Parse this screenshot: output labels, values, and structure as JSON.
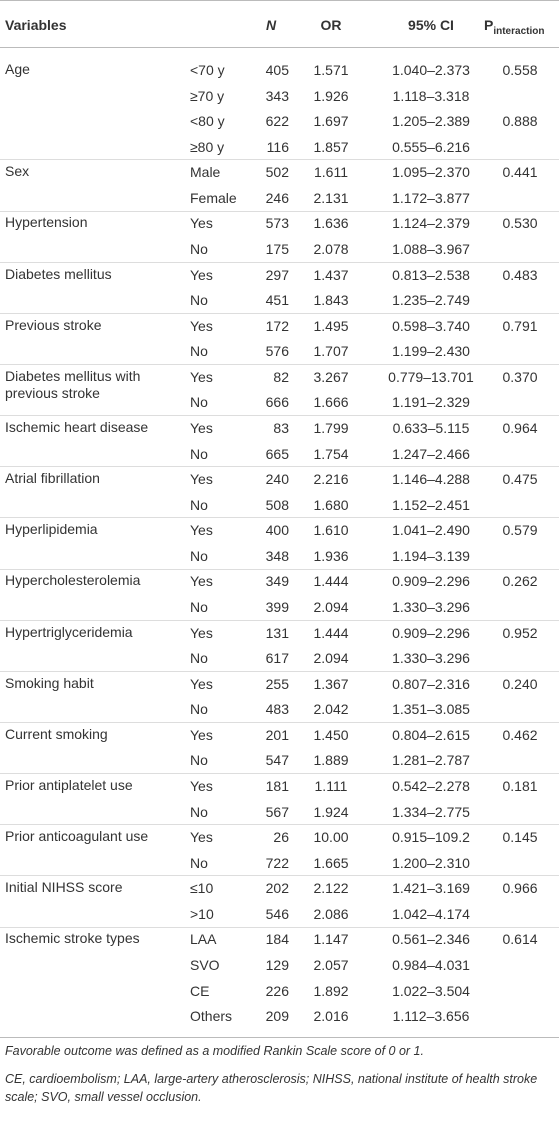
{
  "header": {
    "variables": "Variables",
    "n": "N",
    "or": "OR",
    "ci": "95% CI",
    "p": "P",
    "p_sub": "interaction"
  },
  "groups": [
    {
      "variable": "Age",
      "rows": [
        {
          "sub": "<70 y",
          "n": "405",
          "or": "1.571",
          "ci": "1.040–2.373",
          "p": "0.558"
        },
        {
          "sub": "≥70 y",
          "n": "343",
          "or": "1.926",
          "ci": "1.118–3.318"
        },
        {
          "sub": "<80 y",
          "n": "622",
          "or": "1.697",
          "ci": "1.205–2.389",
          "p": "0.888"
        },
        {
          "sub": "≥80 y",
          "n": "116",
          "or": "1.857",
          "ci": "0.555–6.216"
        }
      ]
    },
    {
      "variable": "Sex",
      "rows": [
        {
          "sub": "Male",
          "n": "502",
          "or": "1.611",
          "ci": "1.095–2.370",
          "p": "0.441"
        },
        {
          "sub": "Female",
          "n": "246",
          "or": "2.131",
          "ci": "1.172–3.877"
        }
      ]
    },
    {
      "variable": "Hypertension",
      "rows": [
        {
          "sub": "Yes",
          "n": "573",
          "or": "1.636",
          "ci": "1.124–2.379",
          "p": "0.530"
        },
        {
          "sub": "No",
          "n": "175",
          "or": "2.078",
          "ci": "1.088–3.967"
        }
      ]
    },
    {
      "variable": "Diabetes mellitus",
      "rows": [
        {
          "sub": "Yes",
          "n": "297",
          "or": "1.437",
          "ci": "0.813–2.538",
          "p": "0.483"
        },
        {
          "sub": "No",
          "n": "451",
          "or": "1.843",
          "ci": "1.235–2.749"
        }
      ]
    },
    {
      "variable": "Previous stroke",
      "rows": [
        {
          "sub": "Yes",
          "n": "172",
          "or": "1.495",
          "ci": "0.598–3.740",
          "p": "0.791"
        },
        {
          "sub": "No",
          "n": "576",
          "or": "1.707",
          "ci": "1.199–2.430"
        }
      ]
    },
    {
      "variable": "Diabetes mellitus with previous stroke",
      "rows": [
        {
          "sub": "Yes",
          "n": "82",
          "or": "3.267",
          "ci": "0.779–13.701",
          "p": "0.370"
        },
        {
          "sub": "No",
          "n": "666",
          "or": "1.666",
          "ci": "1.191–2.329"
        }
      ]
    },
    {
      "variable": "Ischemic heart disease",
      "rows": [
        {
          "sub": "Yes",
          "n": "83",
          "or": "1.799",
          "ci": "0.633–5.115",
          "p": "0.964"
        },
        {
          "sub": "No",
          "n": "665",
          "or": "1.754",
          "ci": "1.247–2.466"
        }
      ]
    },
    {
      "variable": "Atrial fibrillation",
      "rows": [
        {
          "sub": "Yes",
          "n": "240",
          "or": "2.216",
          "ci": "1.146–4.288",
          "p": "0.475"
        },
        {
          "sub": "No",
          "n": "508",
          "or": "1.680",
          "ci": "1.152–2.451"
        }
      ]
    },
    {
      "variable": "Hyperlipidemia",
      "rows": [
        {
          "sub": "Yes",
          "n": "400",
          "or": "1.610",
          "ci": "1.041–2.490",
          "p": "0.579"
        },
        {
          "sub": "No",
          "n": "348",
          "or": "1.936",
          "ci": "1.194–3.139"
        }
      ]
    },
    {
      "variable": "Hypercholesterolemia",
      "rows": [
        {
          "sub": "Yes",
          "n": "349",
          "or": "1.444",
          "ci": "0.909–2.296",
          "p": "0.262"
        },
        {
          "sub": "No",
          "n": "399",
          "or": "2.094",
          "ci": "1.330–3.296"
        }
      ]
    },
    {
      "variable": "Hypertriglyceridemia",
      "rows": [
        {
          "sub": "Yes",
          "n": "131",
          "or": "1.444",
          "ci": "0.909–2.296",
          "p": "0.952"
        },
        {
          "sub": "No",
          "n": "617",
          "or": "2.094",
          "ci": "1.330–3.296"
        }
      ]
    },
    {
      "variable": "Smoking habit",
      "rows": [
        {
          "sub": "Yes",
          "n": "255",
          "or": "1.367",
          "ci": "0.807–2.316",
          "p": "0.240"
        },
        {
          "sub": "No",
          "n": "483",
          "or": "2.042",
          "ci": "1.351–3.085"
        }
      ]
    },
    {
      "variable": "Current smoking",
      "rows": [
        {
          "sub": "Yes",
          "n": "201",
          "or": "1.450",
          "ci": "0.804–2.615",
          "p": "0.462"
        },
        {
          "sub": "No",
          "n": "547",
          "or": "1.889",
          "ci": "1.281–2.787"
        }
      ]
    },
    {
      "variable": "Prior antiplatelet use",
      "rows": [
        {
          "sub": "Yes",
          "n": "181",
          "or": "1.111",
          "ci": "0.542–2.278",
          "p": "0.181"
        },
        {
          "sub": "No",
          "n": "567",
          "or": "1.924",
          "ci": "1.334–2.775"
        }
      ]
    },
    {
      "variable": "Prior anticoagulant use",
      "rows": [
        {
          "sub": "Yes",
          "n": "26",
          "or": "10.00",
          "ci": "0.915–109.2",
          "p": "0.145"
        },
        {
          "sub": "No",
          "n": "722",
          "or": "1.665",
          "ci": "1.200–2.310"
        }
      ]
    },
    {
      "variable": "Initial NIHSS score",
      "rows": [
        {
          "sub": "≤10",
          "n": "202",
          "or": "2.122",
          "ci": "1.421–3.169",
          "p": "0.966"
        },
        {
          "sub": ">10",
          "n": "546",
          "or": "2.086",
          "ci": "1.042–4.174"
        }
      ]
    },
    {
      "variable": "Ischemic stroke types",
      "rows": [
        {
          "sub": "LAA",
          "n": "184",
          "or": "1.147",
          "ci": "0.561–2.346",
          "p": "0.614"
        },
        {
          "sub": "SVO",
          "n": "129",
          "or": "2.057",
          "ci": "0.984–4.031"
        },
        {
          "sub": "CE",
          "n": "226",
          "or": "1.892",
          "ci": "1.022–3.504"
        },
        {
          "sub": "Others",
          "n": "209",
          "or": "2.016",
          "ci": "1.112–3.656"
        }
      ]
    }
  ],
  "footnotes": [
    "Favorable outcome was defined as a modified Rankin Scale score of 0 or 1.",
    "CE, cardioembolism; LAA, large-artery atherosclerosis; NIHSS, national institute of health stroke scale; SVO, small vessel occlusion."
  ]
}
